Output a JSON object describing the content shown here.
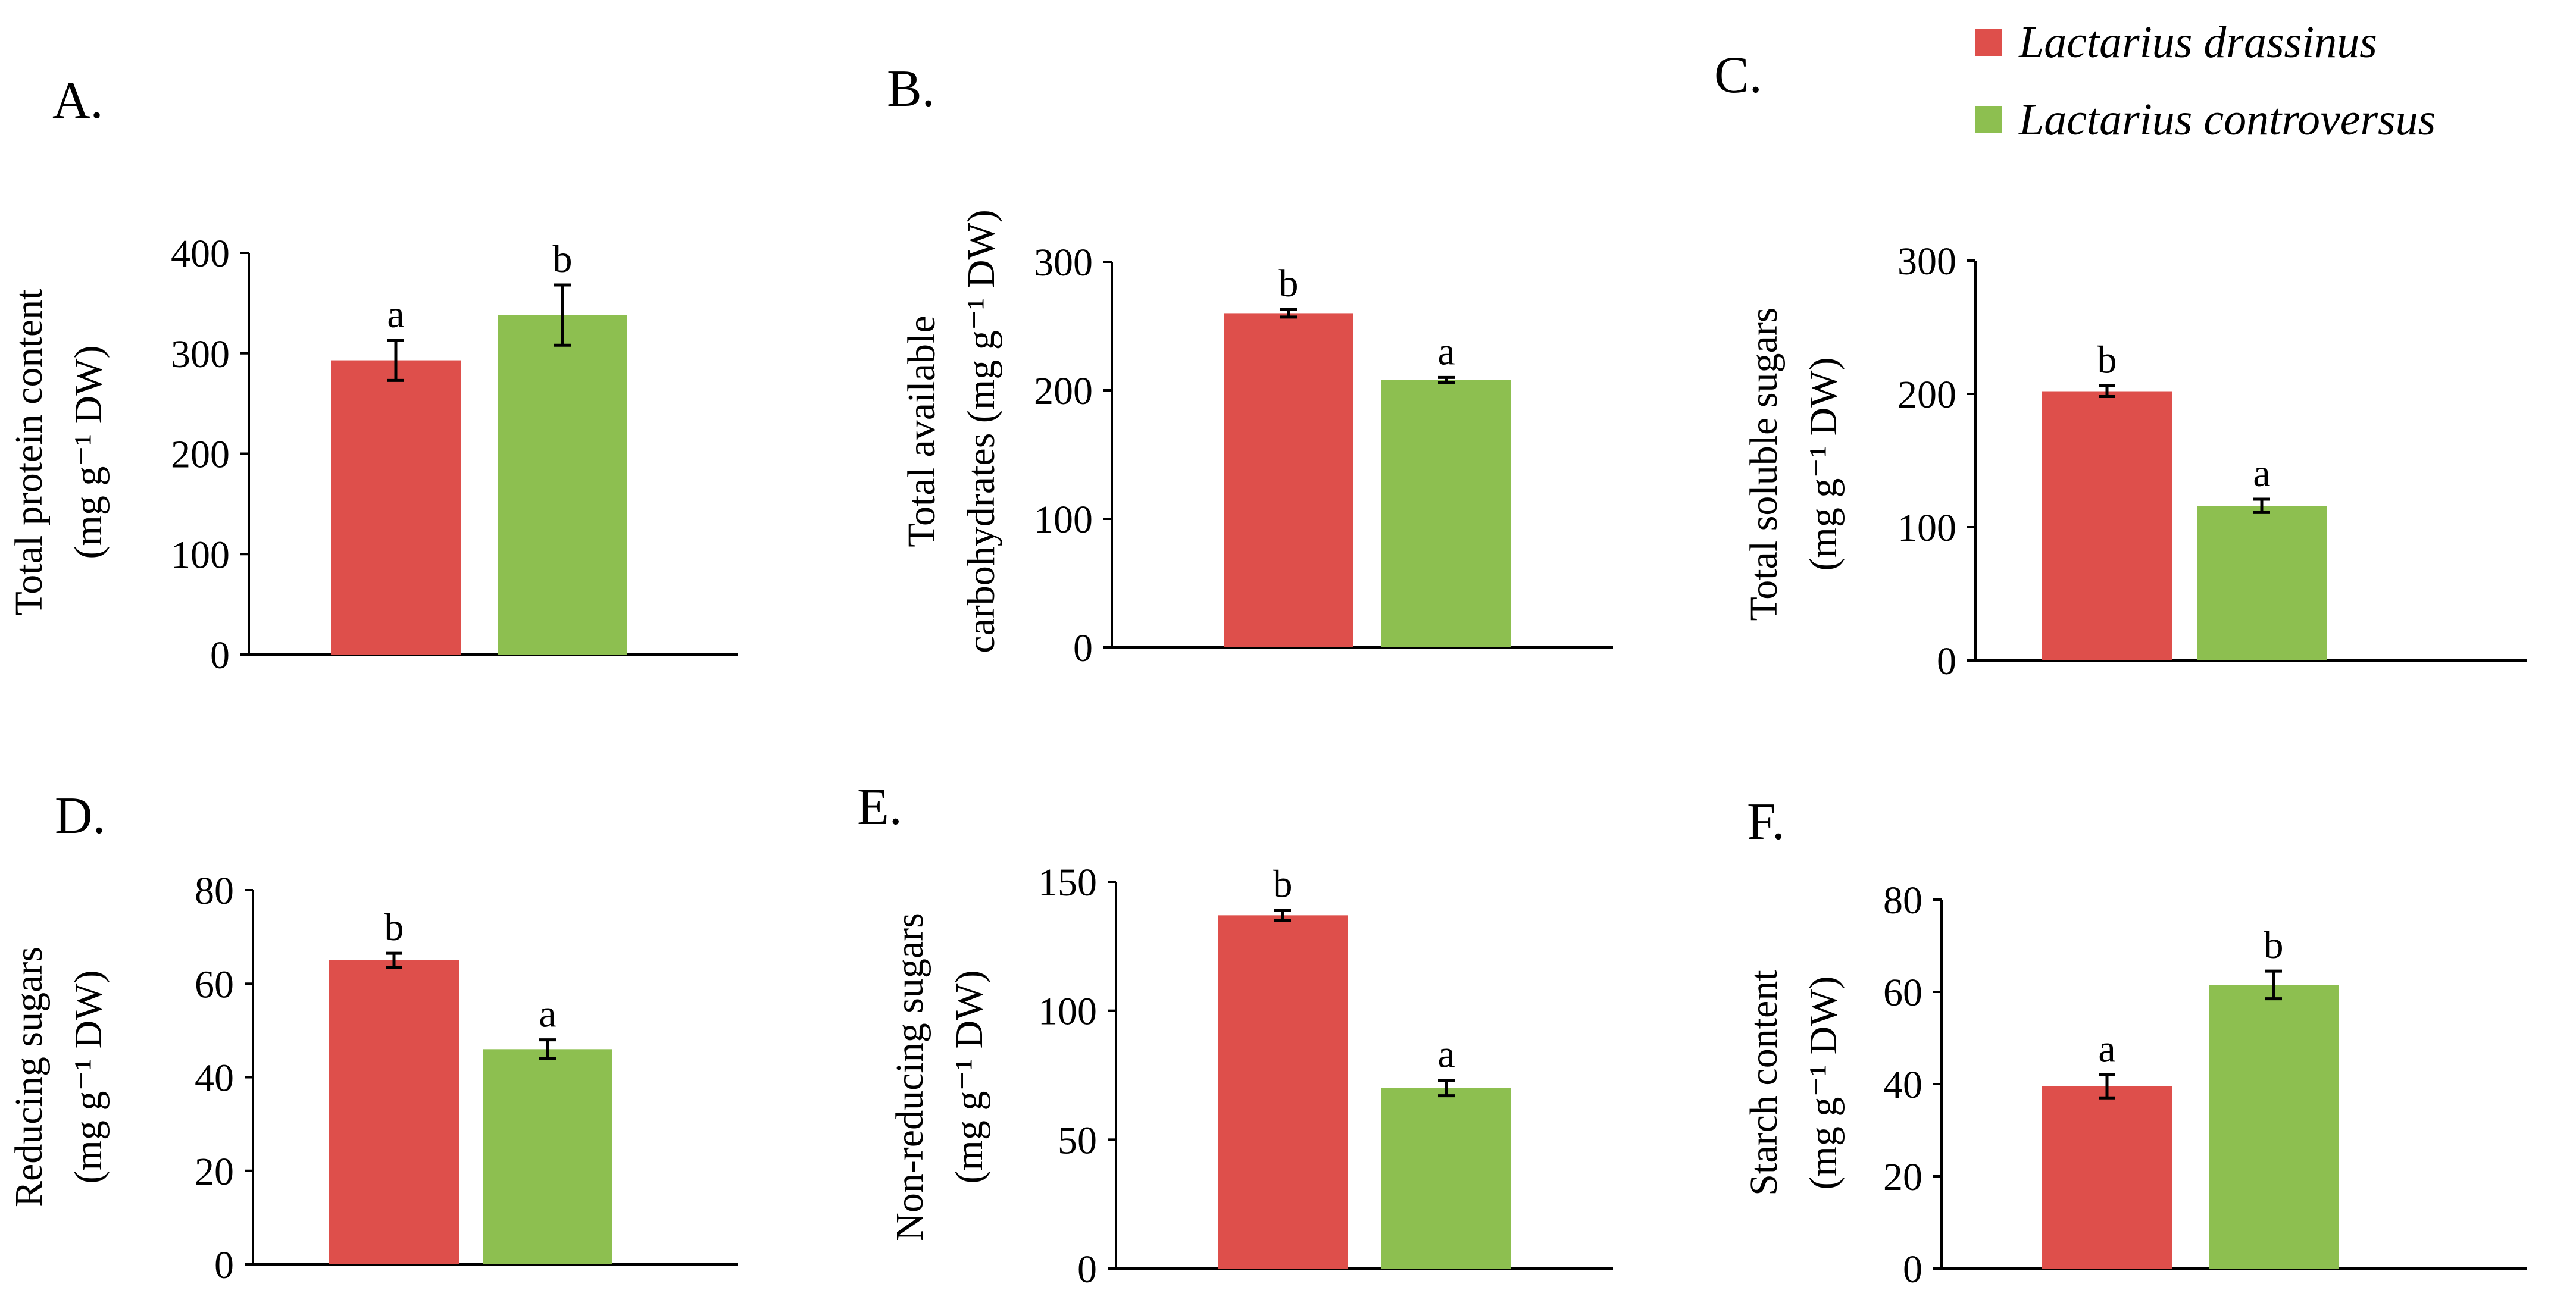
{
  "legend": [
    {
      "label": "Lactarius drassinus",
      "color": "#de4f4b"
    },
    {
      "label": "Lactarius controversus",
      "color": "#8dbf50"
    }
  ],
  "chart_data": [
    {
      "type": "bar",
      "panel": "A.",
      "ylabel_lines": [
        "Total protein content",
        "(mg g⁻¹ DW)"
      ],
      "ylim": [
        0,
        400
      ],
      "yticks": [
        0,
        100,
        200,
        300,
        400
      ],
      "series": [
        {
          "name": "Lactarius drassinus",
          "values": [
            293
          ],
          "errors": [
            20
          ],
          "sig": [
            "a"
          ]
        },
        {
          "name": "Lactarius controversus",
          "values": [
            338
          ],
          "errors": [
            30
          ],
          "sig": [
            "b"
          ]
        }
      ]
    },
    {
      "type": "bar",
      "panel": "B.",
      "ylabel_lines": [
        "Total available",
        "carbohydrates (mg g⁻¹ DW)"
      ],
      "ylim": [
        0,
        300
      ],
      "yticks": [
        0,
        100,
        200,
        300
      ],
      "series": [
        {
          "name": "Lactarius drassinus",
          "values": [
            260
          ],
          "errors": [
            3
          ],
          "sig": [
            "b"
          ]
        },
        {
          "name": "Lactarius controversus",
          "values": [
            208
          ],
          "errors": [
            2
          ],
          "sig": [
            "a"
          ]
        }
      ]
    },
    {
      "type": "bar",
      "panel": "C.",
      "ylabel_lines": [
        "Total soluble sugars",
        "(mg g⁻¹ DW)"
      ],
      "ylim": [
        0,
        300
      ],
      "yticks": [
        0,
        100,
        200,
        300
      ],
      "series": [
        {
          "name": "Lactarius drassinus",
          "values": [
            202
          ],
          "errors": [
            4
          ],
          "sig": [
            "b"
          ]
        },
        {
          "name": "Lactarius controversus",
          "values": [
            116
          ],
          "errors": [
            5
          ],
          "sig": [
            "a"
          ]
        }
      ]
    },
    {
      "type": "bar",
      "panel": "D.",
      "ylabel_lines": [
        "Reducing sugars",
        "(mg g⁻¹ DW)"
      ],
      "ylim": [
        0,
        80
      ],
      "yticks": [
        0,
        20,
        40,
        60,
        80
      ],
      "series": [
        {
          "name": "Lactarius drassinus",
          "values": [
            65
          ],
          "errors": [
            1.5
          ],
          "sig": [
            "b"
          ]
        },
        {
          "name": "Lactarius controversus",
          "values": [
            46
          ],
          "errors": [
            2
          ],
          "sig": [
            "a"
          ]
        }
      ]
    },
    {
      "type": "bar",
      "panel": "E.",
      "ylabel_lines": [
        "Non-reducing sugars",
        "(mg g⁻¹ DW)"
      ],
      "ylim": [
        0,
        150
      ],
      "yticks": [
        0,
        50,
        100,
        150
      ],
      "series": [
        {
          "name": "Lactarius drassinus",
          "values": [
            137
          ],
          "errors": [
            2
          ],
          "sig": [
            "b"
          ]
        },
        {
          "name": "Lactarius controversus",
          "values": [
            70
          ],
          "errors": [
            3
          ],
          "sig": [
            "a"
          ]
        }
      ]
    },
    {
      "type": "bar",
      "panel": "F.",
      "ylabel_lines": [
        "Starch content",
        "(mg g⁻¹ DW)"
      ],
      "ylim": [
        0,
        80
      ],
      "yticks": [
        0,
        20,
        40,
        60,
        80
      ],
      "series": [
        {
          "name": "Lactarius drassinus",
          "values": [
            39.5
          ],
          "errors": [
            2.5
          ],
          "sig": [
            "a"
          ]
        },
        {
          "name": "Lactarius controversus",
          "values": [
            61.5
          ],
          "errors": [
            3
          ],
          "sig": [
            "b"
          ]
        }
      ]
    }
  ]
}
